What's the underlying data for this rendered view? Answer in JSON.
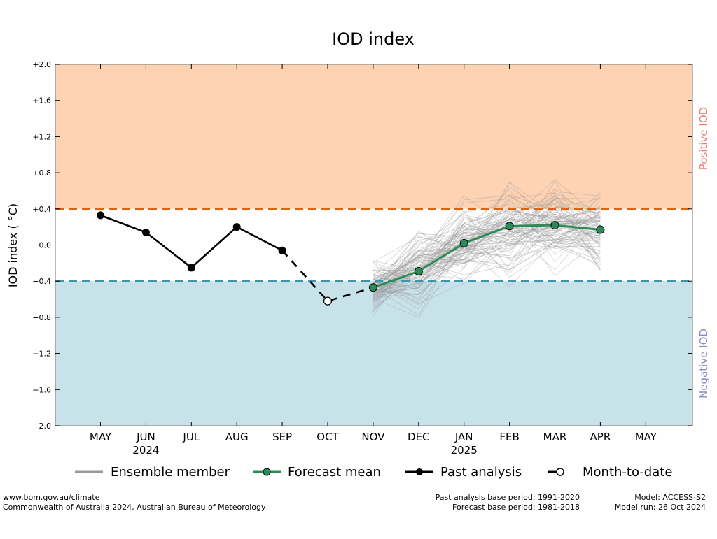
{
  "chart_data": {
    "type": "line",
    "title": "IOD index",
    "ylabel": "IOD index ( °C)",
    "ylim": [
      -2.0,
      2.0
    ],
    "yticks": [
      2.0,
      1.6,
      1.2,
      0.8,
      0.4,
      0.0,
      -0.4,
      -0.8,
      -1.2,
      -1.6,
      -2.0
    ],
    "ytick_labels": [
      "+2.0",
      "+1.6",
      "+1.2",
      "+0.8",
      "+0.4",
      "0.0",
      "−0.4",
      "−0.8",
      "−1.2",
      "−1.6",
      "−2.0"
    ],
    "months": [
      "MAY",
      "JUN",
      "JUL",
      "AUG",
      "SEP",
      "OCT",
      "NOV",
      "DEC",
      "JAN",
      "FEB",
      "MAR",
      "APR",
      "MAY"
    ],
    "year_labels": [
      {
        "at": "JUN",
        "text": "2024"
      },
      {
        "at": "JAN",
        "text": "2025"
      }
    ],
    "thresholds": {
      "positive": 0.4,
      "negative": -0.4,
      "positive_color": "#e0620d",
      "negative_color": "#3e93b0"
    },
    "regions": {
      "positive_label": "Positive IOD",
      "positive_color": "#fdd3b4",
      "positive_text_color": "#f07a6e",
      "negative_label": "Negative IOD",
      "negative_color": "#c8e2ea",
      "negative_text_color": "#8a8cbd"
    },
    "grid": "zero-line only",
    "series": [
      {
        "name": "Past analysis",
        "style": "solid-black-markers",
        "x": [
          "MAY",
          "JUN",
          "JUL",
          "AUG",
          "SEP"
        ],
        "values": [
          0.33,
          0.14,
          -0.25,
          0.2,
          -0.06
        ]
      },
      {
        "name": "Month-to-date",
        "style": "dashed-black-open-marker",
        "x": [
          "SEP",
          "OCT",
          "NOV"
        ],
        "values": [
          -0.06,
          -0.62,
          -0.47
        ],
        "marker_at": "OCT"
      },
      {
        "name": "Forecast mean",
        "style": "green-markers",
        "color": "#2e8b57",
        "x": [
          "NOV",
          "DEC",
          "JAN",
          "FEB",
          "MAR",
          "APR"
        ],
        "values": [
          -0.47,
          -0.29,
          0.02,
          0.21,
          0.22,
          0.17
        ]
      },
      {
        "name": "Ensemble member",
        "style": "gray-thin",
        "color": "#999999",
        "x": [
          "NOV",
          "DEC",
          "JAN",
          "FEB",
          "MAR",
          "APR"
        ],
        "count": 90,
        "envelope_low": [
          -0.83,
          -0.86,
          -0.45,
          -0.58,
          -0.35,
          -0.28
        ],
        "envelope_high": [
          -0.08,
          0.25,
          0.62,
          0.7,
          0.82,
          0.92
        ]
      }
    ],
    "legend": {
      "placement": "bottom",
      "entries": [
        "Ensemble member",
        "Forecast mean",
        "Past analysis",
        "Month-to-date"
      ]
    }
  },
  "footer": {
    "left": [
      "www.bom.gov.au/climate",
      "Commonwealth of Australia 2024, Australian Bureau of Meteorology"
    ],
    "middle": [
      "Past analysis base period: 1991-2020",
      "Forecast base period: 1981-2018"
    ],
    "right": [
      "Model: ACCESS-S2",
      "Model run: 26 Oct 2024"
    ]
  }
}
